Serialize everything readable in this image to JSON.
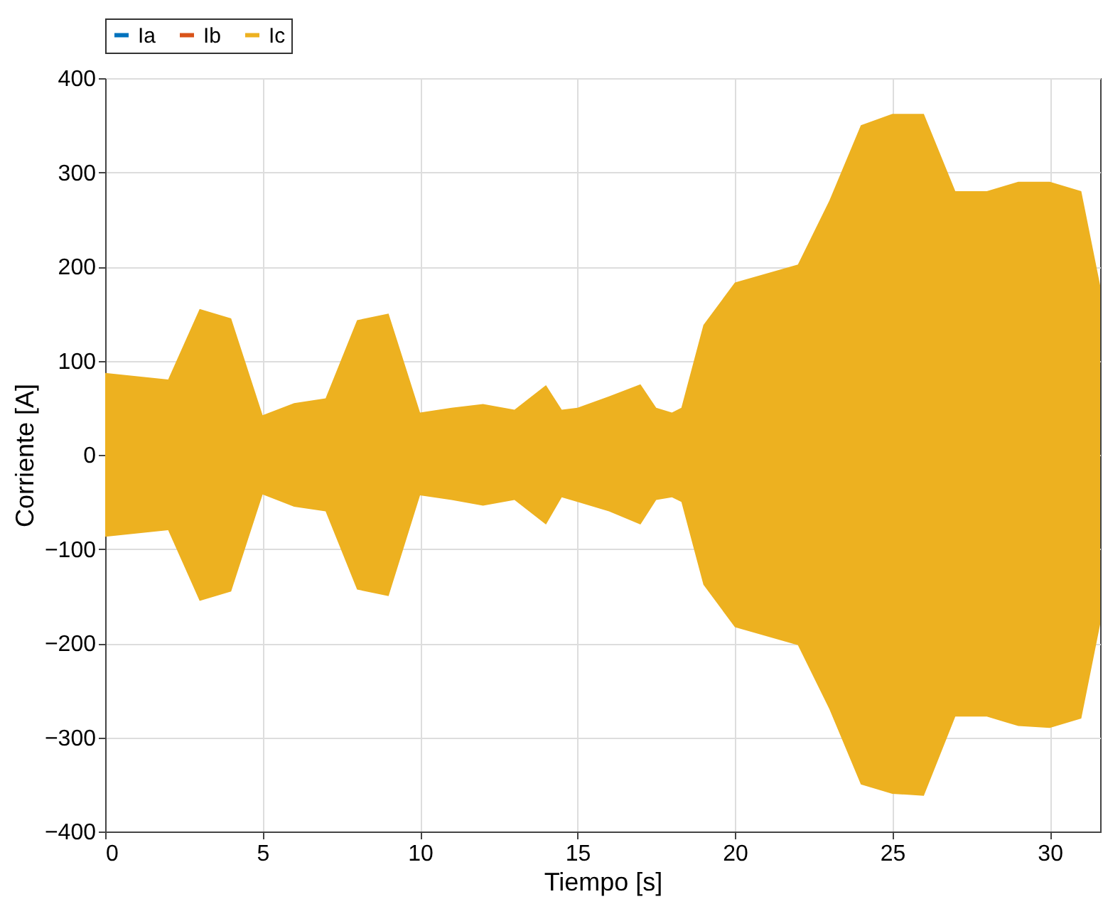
{
  "chart_data": {
    "type": "area",
    "xlabel": "Tiempo [s]",
    "ylabel": "Corriente [A]",
    "x": [
      0,
      2,
      3,
      4,
      5,
      6,
      7,
      8,
      9,
      10,
      11,
      12,
      13,
      14,
      14.5,
      15,
      16,
      17,
      17.5,
      18,
      18.3,
      19,
      20,
      22,
      23,
      24,
      25,
      26,
      27,
      28,
      29,
      30,
      31,
      31.6
    ],
    "series": [
      {
        "name": "Ia",
        "type": "line",
        "color": "#0072bd",
        "values": [
          null,
          null,
          null,
          null,
          null,
          null,
          null,
          null,
          null,
          null,
          null,
          null,
          null,
          null,
          null,
          null,
          null,
          null,
          null,
          null,
          null,
          null,
          null,
          null,
          null,
          null,
          null,
          null,
          null,
          null,
          null,
          null,
          null,
          null
        ]
      },
      {
        "name": "Ib",
        "type": "line",
        "color": "#d95319",
        "values": [
          null,
          null,
          null,
          null,
          null,
          null,
          null,
          null,
          null,
          null,
          null,
          null,
          null,
          null,
          null,
          null,
          null,
          null,
          null,
          null,
          null,
          null,
          null,
          null,
          null,
          null,
          null,
          null,
          null,
          null,
          null,
          null,
          null,
          null
        ]
      },
      {
        "name": "Ic",
        "color": "#edb120",
        "values": [
          87,
          80,
          155,
          145,
          42,
          55,
          60,
          143,
          150,
          45,
          50,
          54,
          48,
          74,
          48,
          50,
          62,
          75,
          50,
          45,
          50,
          138,
          183,
          202,
          270,
          350,
          362,
          362,
          280,
          280,
          290,
          290,
          280,
          180
        ]
      },
      {
        "color": "#edb120",
        "values": [
          -87,
          -80,
          -155,
          -145,
          -42,
          -55,
          -60,
          -143,
          -150,
          -43,
          -48,
          -54,
          -48,
          -74,
          -45,
          -50,
          -60,
          -74,
          -48,
          -45,
          -50,
          -138,
          -183,
          -202,
          -270,
          -350,
          -360,
          -362,
          -278,
          -278,
          -288,
          -290,
          -280,
          -180
        ]
      }
    ],
    "xlim": [
      0,
      31.6
    ],
    "xticks": [
      0,
      5,
      10,
      15,
      20,
      25,
      30
    ],
    "ylim": [
      -400,
      400
    ],
    "yticks": [
      -400,
      -300,
      -200,
      -100,
      0,
      100,
      200,
      300,
      400
    ],
    "grid": true,
    "legend": "top"
  }
}
